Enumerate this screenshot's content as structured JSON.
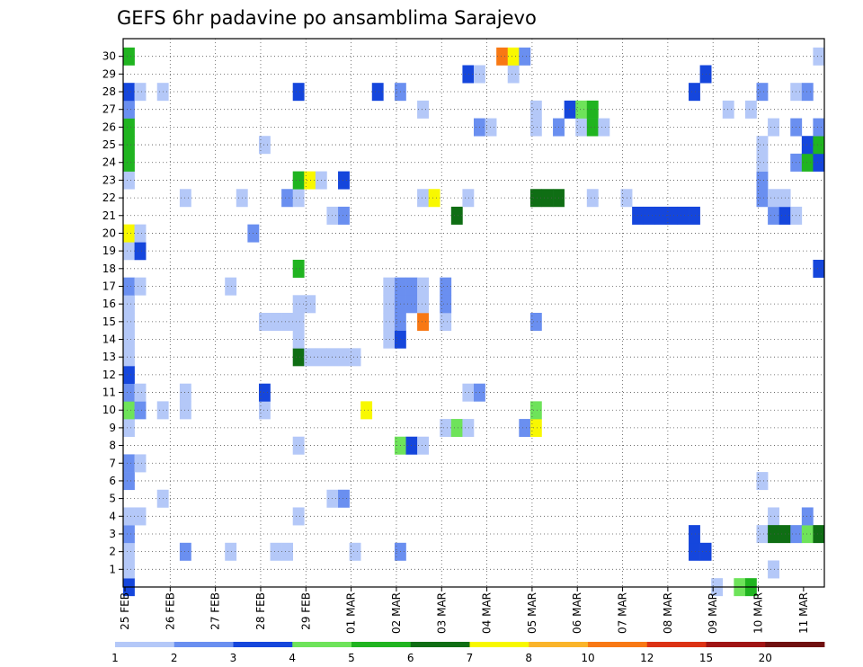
{
  "chart_data": {
    "type": "heatmap",
    "title": "GEFS 6hr padavine po ansamblima Sarajevo",
    "xlabel": "",
    "ylabel": "",
    "x_tick_labels": [
      "25 FEB",
      "26 FEB",
      "27 FEB",
      "28 FEB",
      "29 FEB",
      "01 MAR",
      "02 MAR",
      "03 MAR",
      "04 MAR",
      "05 MAR",
      "06 MAR",
      "07 MAR",
      "08 MAR",
      "09 MAR",
      "10 MAR",
      "11 MAR"
    ],
    "y_tick_labels": [
      "1",
      "2",
      "3",
      "4",
      "5",
      "6",
      "7",
      "8",
      "9",
      "10",
      "11",
      "12",
      "13",
      "14",
      "15",
      "16",
      "17",
      "18",
      "19",
      "20",
      "21",
      "22",
      "23",
      "24",
      "25",
      "26",
      "27",
      "28",
      "29",
      "30"
    ],
    "colorbar": {
      "ticks": [
        "1",
        "2",
        "3",
        "4",
        "5",
        "6",
        "7",
        "8",
        "10",
        "12",
        "15",
        "20"
      ],
      "colors": [
        "#b4c8f8",
        "#6a8ff0",
        "#1546dc",
        "#6ee35a",
        "#20b420",
        "#0f6e14",
        "#f8f800",
        "#fab42a",
        "#f87814",
        "#dc3214",
        "#a01414",
        "#701010"
      ]
    },
    "grid": true,
    "cells": [
      [
        0,
        0,
        3
      ],
      [
        0,
        1,
        1
      ],
      [
        0,
        2,
        1
      ],
      [
        0,
        3,
        2
      ],
      [
        0,
        4,
        1
      ],
      [
        0,
        6,
        2
      ],
      [
        0,
        7,
        2
      ],
      [
        0,
        9,
        1
      ],
      [
        0,
        10,
        4
      ],
      [
        0,
        11,
        2
      ],
      [
        0,
        12,
        3
      ],
      [
        0,
        13,
        1
      ],
      [
        0,
        14,
        1
      ],
      [
        0,
        15,
        1
      ],
      [
        0,
        16,
        1
      ],
      [
        0,
        17,
        2
      ],
      [
        0,
        19,
        1
      ],
      [
        0,
        20,
        7
      ],
      [
        0,
        23,
        1
      ],
      [
        0,
        24,
        5
      ],
      [
        0,
        25,
        5
      ],
      [
        0,
        26,
        5
      ],
      [
        0,
        27,
        2
      ],
      [
        0,
        28,
        3
      ],
      [
        0,
        30,
        5
      ],
      [
        1,
        4,
        1
      ],
      [
        1,
        7,
        1
      ],
      [
        1,
        10,
        2
      ],
      [
        1,
        11,
        1
      ],
      [
        1,
        17,
        1
      ],
      [
        1,
        19,
        3
      ],
      [
        1,
        20,
        1
      ],
      [
        1,
        28,
        1
      ],
      [
        3,
        5,
        1
      ],
      [
        3,
        10,
        1
      ],
      [
        3,
        28,
        1
      ],
      [
        5,
        2,
        2
      ],
      [
        5,
        10,
        1
      ],
      [
        5,
        11,
        1
      ],
      [
        5,
        22,
        1
      ],
      [
        9,
        2,
        1
      ],
      [
        9,
        17,
        1
      ],
      [
        10,
        22,
        1
      ],
      [
        11,
        20,
        2
      ],
      [
        12,
        10,
        1
      ],
      [
        12,
        11,
        3
      ],
      [
        12,
        15,
        1
      ],
      [
        12,
        25,
        1
      ],
      [
        13,
        2,
        1
      ],
      [
        13,
        15,
        1
      ],
      [
        14,
        2,
        1
      ],
      [
        14,
        15,
        1
      ],
      [
        14,
        22,
        2
      ],
      [
        15,
        4,
        1
      ],
      [
        15,
        8,
        1
      ],
      [
        15,
        13,
        6
      ],
      [
        15,
        14,
        1
      ],
      [
        15,
        15,
        1
      ],
      [
        15,
        16,
        1
      ],
      [
        15,
        18,
        5
      ],
      [
        15,
        22,
        1
      ],
      [
        15,
        23,
        5
      ],
      [
        15,
        28,
        3
      ],
      [
        16,
        13,
        1
      ],
      [
        16,
        16,
        1
      ],
      [
        16,
        23,
        7
      ],
      [
        17,
        13,
        1
      ],
      [
        17,
        23,
        1
      ],
      [
        18,
        5,
        1
      ],
      [
        18,
        13,
        1
      ],
      [
        18,
        21,
        1
      ],
      [
        19,
        5,
        2
      ],
      [
        19,
        13,
        1
      ],
      [
        19,
        21,
        2
      ],
      [
        19,
        23,
        3
      ],
      [
        20,
        2,
        1
      ],
      [
        20,
        13,
        1
      ],
      [
        21,
        10,
        7
      ],
      [
        22,
        28,
        3
      ],
      [
        23,
        14,
        1
      ],
      [
        23,
        15,
        1
      ],
      [
        23,
        16,
        1
      ],
      [
        23,
        17,
        1
      ],
      [
        24,
        2,
        2
      ],
      [
        24,
        8,
        4
      ],
      [
        24,
        14,
        3
      ],
      [
        24,
        15,
        2
      ],
      [
        24,
        16,
        2
      ],
      [
        24,
        17,
        2
      ],
      [
        24,
        28,
        2
      ],
      [
        25,
        8,
        3
      ],
      [
        25,
        16,
        2
      ],
      [
        25,
        17,
        2
      ],
      [
        26,
        8,
        1
      ],
      [
        26,
        15,
        9
      ],
      [
        26,
        16,
        1
      ],
      [
        26,
        17,
        1
      ],
      [
        26,
        22,
        1
      ],
      [
        26,
        27,
        1
      ],
      [
        27,
        22,
        7
      ],
      [
        28,
        9,
        1
      ],
      [
        28,
        15,
        1
      ],
      [
        28,
        16,
        2
      ],
      [
        28,
        17,
        2
      ],
      [
        29,
        9,
        4
      ],
      [
        29,
        21,
        6
      ],
      [
        30,
        9,
        1
      ],
      [
        30,
        11,
        1
      ],
      [
        30,
        22,
        1
      ],
      [
        30,
        29,
        3
      ],
      [
        31,
        11,
        2
      ],
      [
        31,
        26,
        2
      ],
      [
        31,
        29,
        1
      ],
      [
        32,
        26,
        1
      ],
      [
        33,
        30,
        9
      ],
      [
        34,
        29,
        1
      ],
      [
        34,
        30,
        7
      ],
      [
        35,
        9,
        2
      ],
      [
        35,
        30,
        2
      ],
      [
        36,
        9,
        7
      ],
      [
        36,
        10,
        4
      ],
      [
        36,
        15,
        2
      ],
      [
        36,
        22,
        6
      ],
      [
        36,
        26,
        1
      ],
      [
        36,
        27,
        1
      ],
      [
        37,
        22,
        6
      ],
      [
        38,
        22,
        6
      ],
      [
        38,
        26,
        2
      ],
      [
        39,
        27,
        3
      ],
      [
        40,
        26,
        1
      ],
      [
        40,
        27,
        4
      ],
      [
        41,
        22,
        1
      ],
      [
        41,
        26,
        5
      ],
      [
        41,
        27,
        5
      ],
      [
        42,
        26,
        1
      ],
      [
        44,
        22,
        1
      ],
      [
        45,
        21,
        3
      ],
      [
        46,
        21,
        3
      ],
      [
        47,
        21,
        3
      ],
      [
        48,
        21,
        3
      ],
      [
        49,
        21,
        3
      ],
      [
        50,
        21,
        3
      ],
      [
        50,
        2,
        3
      ],
      [
        50,
        3,
        3
      ],
      [
        50,
        28,
        3
      ],
      [
        51,
        2,
        3
      ],
      [
        51,
        29,
        3
      ],
      [
        52,
        0,
        1
      ],
      [
        53,
        27,
        1
      ],
      [
        54,
        0,
        4
      ],
      [
        55,
        0,
        5
      ],
      [
        55,
        27,
        1
      ],
      [
        56,
        3,
        1
      ],
      [
        56,
        6,
        1
      ],
      [
        56,
        22,
        2
      ],
      [
        56,
        23,
        2
      ],
      [
        56,
        24,
        1
      ],
      [
        56,
        25,
        1
      ],
      [
        56,
        28,
        2
      ],
      [
        57,
        1,
        1
      ],
      [
        57,
        4,
        1
      ],
      [
        57,
        3,
        6
      ],
      [
        57,
        21,
        2
      ],
      [
        57,
        22,
        1
      ],
      [
        57,
        26,
        1
      ],
      [
        58,
        3,
        6
      ],
      [
        58,
        21,
        3
      ],
      [
        58,
        22,
        1
      ],
      [
        59,
        3,
        2
      ],
      [
        59,
        21,
        1
      ],
      [
        59,
        24,
        2
      ],
      [
        59,
        26,
        2
      ],
      [
        59,
        28,
        1
      ],
      [
        60,
        3,
        4
      ],
      [
        60,
        4,
        2
      ],
      [
        60,
        24,
        5
      ],
      [
        60,
        25,
        3
      ],
      [
        60,
        28,
        2
      ],
      [
        61,
        3,
        6
      ],
      [
        61,
        18,
        3
      ],
      [
        61,
        24,
        3
      ],
      [
        61,
        25,
        5
      ],
      [
        61,
        26,
        2
      ],
      [
        61,
        30,
        1
      ]
    ]
  }
}
